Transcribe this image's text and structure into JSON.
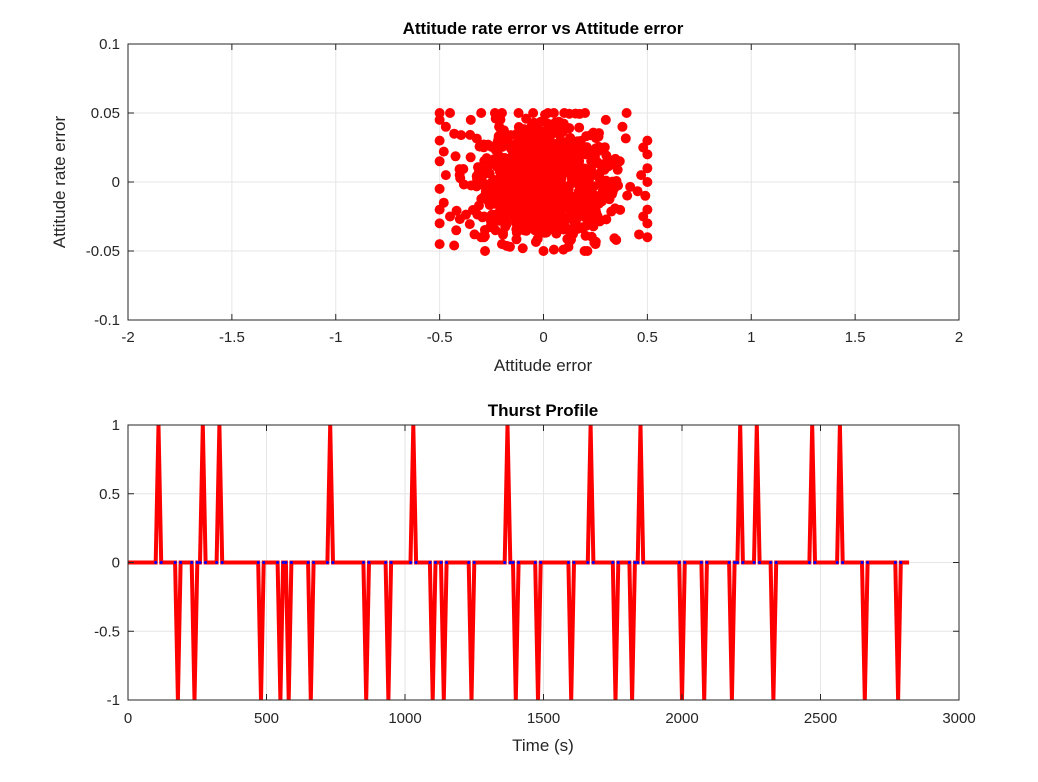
{
  "chart_data": [
    {
      "type": "scatter",
      "title": "Attitude rate error vs Attitude error",
      "xlabel": "Attitude error",
      "ylabel": "Attitude rate error",
      "xlim": [
        -2,
        2
      ],
      "ylim": [
        -0.1,
        0.1
      ],
      "xticks": [
        "-2",
        "-1.5",
        "-1",
        "-0.5",
        "0",
        "0.5",
        "1",
        "1.5",
        "2"
      ],
      "yticks": [
        "-0.1",
        "-0.05",
        "0",
        "0.05",
        "0.1"
      ],
      "grid": true,
      "marker_color": "#ff0000",
      "marker": "filled-circle",
      "x_extent": [
        -0.5,
        0.5
      ],
      "y_extent": [
        -0.05,
        0.05
      ],
      "approx_point_count": 1000,
      "points": [
        [
          -0.5,
          0.05
        ],
        [
          -0.45,
          0.05
        ],
        [
          -0.3,
          0.05
        ],
        [
          -0.2,
          0.05
        ],
        [
          -0.12,
          0.05
        ],
        [
          -0.05,
          0.05
        ],
        [
          0.05,
          0.05
        ],
        [
          0.1,
          0.05
        ],
        [
          0.2,
          0.05
        ],
        [
          0.4,
          0.05
        ],
        [
          -0.5,
          0.045
        ],
        [
          -0.47,
          0.04
        ],
        [
          -0.43,
          0.035
        ],
        [
          -0.5,
          0.03
        ],
        [
          -0.48,
          0.022
        ],
        [
          -0.5,
          0.015
        ],
        [
          -0.47,
          0.005
        ],
        [
          -0.5,
          -0.005
        ],
        [
          -0.48,
          -0.015
        ],
        [
          -0.5,
          -0.02
        ],
        [
          -0.45,
          -0.025
        ],
        [
          -0.5,
          -0.03
        ],
        [
          -0.42,
          -0.035
        ],
        [
          -0.5,
          -0.045
        ],
        [
          -0.43,
          -0.046
        ],
        [
          0.5,
          0.03
        ],
        [
          0.48,
          0.025
        ],
        [
          0.5,
          0.02
        ],
        [
          0.5,
          0.01
        ],
        [
          0.47,
          0.005
        ],
        [
          0.5,
          0.0
        ],
        [
          0.49,
          -0.01
        ],
        [
          0.5,
          -0.02
        ],
        [
          0.48,
          -0.025
        ],
        [
          0.5,
          -0.03
        ],
        [
          0.5,
          -0.04
        ],
        [
          0.46,
          -0.038
        ],
        [
          -0.3,
          -0.04
        ],
        [
          -0.2,
          -0.045
        ],
        [
          -0.1,
          -0.048
        ],
        [
          0.0,
          -0.05
        ],
        [
          0.05,
          -0.049
        ],
        [
          0.12,
          -0.047
        ],
        [
          0.25,
          -0.045
        ],
        [
          0.35,
          -0.042
        ],
        [
          0.3,
          0.045
        ],
        [
          0.38,
          0.04
        ],
        [
          -0.35,
          0.045
        ]
      ]
    },
    {
      "type": "line",
      "title": "Thurst Profile",
      "xlabel": "Time (s)",
      "ylabel": "",
      "xlim": [
        0,
        3000
      ],
      "ylim": [
        -1,
        1
      ],
      "xticks": [
        "0",
        "500",
        "1000",
        "1500",
        "2000",
        "2500",
        "3000"
      ],
      "yticks": [
        "-1",
        "-0.5",
        "0",
        "0.5",
        "1"
      ],
      "grid": true,
      "line_color": "#ff0000",
      "marker_color": "#0000ff",
      "x_end": 2820,
      "pulse_half_width": 10,
      "pulses": [
        {
          "t": 110,
          "v": 1
        },
        {
          "t": 180,
          "v": -1
        },
        {
          "t": 240,
          "v": -1
        },
        {
          "t": 270,
          "v": 1
        },
        {
          "t": 330,
          "v": 1
        },
        {
          "t": 480,
          "v": -1
        },
        {
          "t": 550,
          "v": -1
        },
        {
          "t": 580,
          "v": -1
        },
        {
          "t": 660,
          "v": -1
        },
        {
          "t": 730,
          "v": 1
        },
        {
          "t": 860,
          "v": -1
        },
        {
          "t": 940,
          "v": -1
        },
        {
          "t": 1030,
          "v": 1
        },
        {
          "t": 1100,
          "v": -1
        },
        {
          "t": 1140,
          "v": -1
        },
        {
          "t": 1240,
          "v": -1
        },
        {
          "t": 1370,
          "v": 1
        },
        {
          "t": 1400,
          "v": -1
        },
        {
          "t": 1480,
          "v": -1
        },
        {
          "t": 1600,
          "v": -1
        },
        {
          "t": 1670,
          "v": 1
        },
        {
          "t": 1760,
          "v": -1
        },
        {
          "t": 1820,
          "v": -1
        },
        {
          "t": 1850,
          "v": 1
        },
        {
          "t": 2000,
          "v": -1
        },
        {
          "t": 2080,
          "v": -1
        },
        {
          "t": 2180,
          "v": -1
        },
        {
          "t": 2210,
          "v": 1
        },
        {
          "t": 2270,
          "v": 1
        },
        {
          "t": 2330,
          "v": -1
        },
        {
          "t": 2470,
          "v": 1
        },
        {
          "t": 2570,
          "v": 1
        },
        {
          "t": 2660,
          "v": -1
        },
        {
          "t": 2780,
          "v": -1
        }
      ]
    }
  ]
}
